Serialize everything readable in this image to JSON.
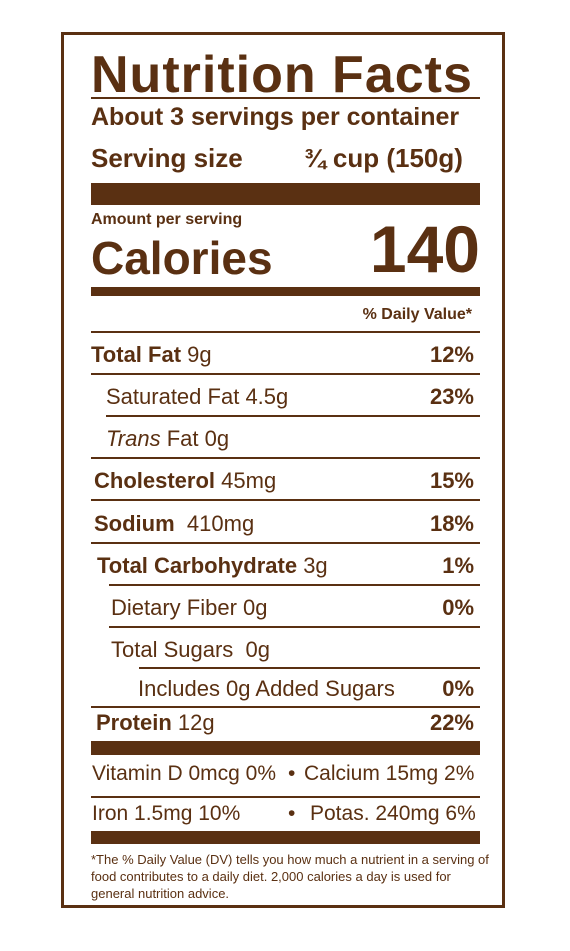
{
  "title": "Nutrition Facts",
  "servings_per_container": "About 3 servings per container",
  "serving_size_label": "Serving size",
  "serving_size_value": "¾ cup (150g)",
  "amount_per_serving": "Amount per serving",
  "calories_label": "Calories",
  "calories_value": "140",
  "daily_value_header": "% Daily Value*",
  "nutrients": {
    "total_fat": {
      "name": "Total Fat",
      "amount": "9g",
      "dv": "12%"
    },
    "saturated_fat": {
      "name": "Saturated Fat",
      "amount": "4.5g",
      "dv": "23%"
    },
    "trans_fat": {
      "name_italic": "Trans",
      "name": " Fat",
      "amount": "0g"
    },
    "cholesterol": {
      "name": "Cholesterol",
      "amount": "45mg",
      "dv": "15%"
    },
    "sodium": {
      "name": "Sodium",
      "amount": "410mg",
      "dv": "18%"
    },
    "total_carbohydrate": {
      "name": "Total Carbohydrate",
      "amount": "3g",
      "dv": "1%"
    },
    "dietary_fiber": {
      "name": "Dietary Fiber",
      "amount": "0g",
      "dv": "0%"
    },
    "total_sugars": {
      "name": "Total Sugars",
      "amount": "0g"
    },
    "added_sugars": {
      "name": "Includes 0g Added Sugars",
      "dv": "0%"
    },
    "protein": {
      "name": "Protein",
      "amount": "12g",
      "dv": "22%"
    }
  },
  "vitamins": {
    "vitamin_d": "Vitamin D 0mcg 0%",
    "calcium": "Calcium 15mg  2%",
    "iron": "Iron 1.5mg  10%",
    "potassium": "Potas. 240mg  6%",
    "bullet": "•"
  },
  "footnote": "*The % Daily Value (DV) tells you how much a nutrient in a serving of food contributes to a daily diet. 2,000 calories a day is used for general nutrition advice.",
  "colors": {
    "ink": "#5a3012",
    "background": "#ffffff"
  }
}
